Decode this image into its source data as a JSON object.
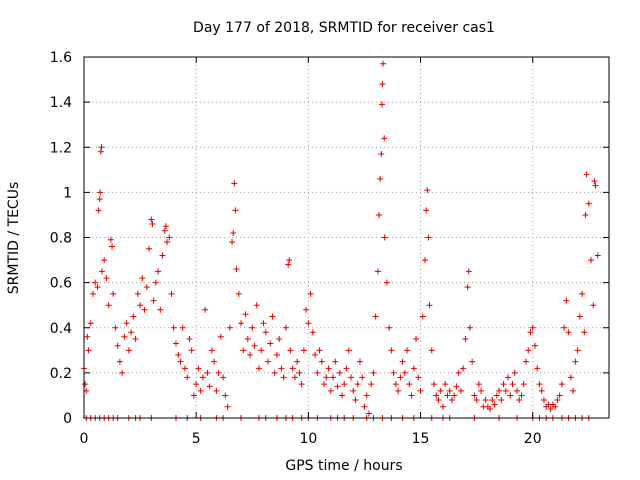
{
  "chart_data": {
    "type": "scatter",
    "title": "Day 177 of 2018, SRMTID for receiver cas1",
    "xlabel": "GPS time / hours",
    "ylabel": "SRMTID / TECUs",
    "xlim": [
      0,
      23.4
    ],
    "ylim": [
      0,
      1.6
    ],
    "x_ticks": [
      "0",
      "5",
      "10",
      "15",
      "20"
    ],
    "x_tick_values": [
      0,
      5,
      10,
      15,
      20
    ],
    "y_ticks": [
      "0",
      "0.2",
      "0.4",
      "0.6",
      "0.8",
      "1",
      "1.2",
      "1.4",
      "1.6"
    ],
    "y_tick_values": [
      0,
      0.2,
      0.4,
      0.6,
      0.8,
      1.0,
      1.2,
      1.4,
      1.6
    ],
    "grid": true,
    "marker": "+",
    "marker_color": "#e00000",
    "series": [
      {
        "name": "SRMTID",
        "points": [
          [
            0.0,
            0.22
          ],
          [
            0.05,
            0.15
          ],
          [
            0.1,
            0.12
          ],
          [
            0.15,
            0.36
          ],
          [
            0.2,
            0.3
          ],
          [
            0.3,
            0.42
          ],
          [
            0.4,
            0.55
          ],
          [
            0.5,
            0.6
          ],
          [
            0.6,
            0.58
          ],
          [
            0.65,
            0.92
          ],
          [
            0.7,
            0.97
          ],
          [
            0.72,
            1.0
          ],
          [
            0.75,
            1.18
          ],
          [
            0.78,
            1.2
          ],
          [
            0.8,
            0.65
          ],
          [
            0.9,
            0.7
          ],
          [
            1.0,
            0.62
          ],
          [
            1.1,
            0.5
          ],
          [
            1.2,
            0.79
          ],
          [
            1.25,
            0.76
          ],
          [
            1.3,
            0.55
          ],
          [
            1.4,
            0.4
          ],
          [
            1.5,
            0.32
          ],
          [
            1.6,
            0.25
          ],
          [
            1.7,
            0.2
          ],
          [
            1.8,
            0.36
          ],
          [
            1.9,
            0.42
          ],
          [
            2.0,
            0.3
          ],
          [
            2.1,
            0.38
          ],
          [
            2.2,
            0.45
          ],
          [
            2.3,
            0.35
          ],
          [
            2.4,
            0.55
          ],
          [
            2.5,
            0.5
          ],
          [
            2.6,
            0.62
          ],
          [
            2.7,
            0.48
          ],
          [
            2.8,
            0.58
          ],
          [
            2.9,
            0.75
          ],
          [
            3.0,
            0.88
          ],
          [
            3.05,
            0.86
          ],
          [
            3.1,
            0.52
          ],
          [
            3.2,
            0.6
          ],
          [
            3.3,
            0.65
          ],
          [
            3.4,
            0.48
          ],
          [
            3.5,
            0.72
          ],
          [
            3.6,
            0.83
          ],
          [
            3.65,
            0.85
          ],
          [
            3.7,
            0.78
          ],
          [
            3.8,
            0.8
          ],
          [
            3.9,
            0.55
          ],
          [
            4.0,
            0.4
          ],
          [
            4.1,
            0.33
          ],
          [
            4.2,
            0.28
          ],
          [
            4.3,
            0.25
          ],
          [
            4.4,
            0.4
          ],
          [
            4.5,
            0.22
          ],
          [
            4.6,
            0.18
          ],
          [
            4.7,
            0.35
          ],
          [
            4.8,
            0.3
          ],
          [
            4.9,
            0.1
          ],
          [
            5.0,
            0.15
          ],
          [
            5.1,
            0.22
          ],
          [
            5.2,
            0.12
          ],
          [
            5.3,
            0.18
          ],
          [
            5.4,
            0.48
          ],
          [
            5.5,
            0.2
          ],
          [
            5.6,
            0.14
          ],
          [
            5.7,
            0.3
          ],
          [
            5.8,
            0.25
          ],
          [
            5.9,
            0.12
          ],
          [
            6.0,
            0.2
          ],
          [
            6.1,
            0.36
          ],
          [
            6.2,
            0.18
          ],
          [
            6.3,
            0.1
          ],
          [
            6.4,
            0.05
          ],
          [
            6.5,
            0.4
          ],
          [
            6.6,
            0.78
          ],
          [
            6.65,
            0.82
          ],
          [
            6.7,
            1.04
          ],
          [
            6.75,
            0.92
          ],
          [
            6.8,
            0.66
          ],
          [
            6.9,
            0.55
          ],
          [
            7.0,
            0.42
          ],
          [
            7.1,
            0.3
          ],
          [
            7.2,
            0.46
          ],
          [
            7.3,
            0.35
          ],
          [
            7.4,
            0.28
          ],
          [
            7.5,
            0.4
          ],
          [
            7.6,
            0.32
          ],
          [
            7.7,
            0.5
          ],
          [
            7.8,
            0.22
          ],
          [
            7.9,
            0.3
          ],
          [
            8.0,
            0.42
          ],
          [
            8.1,
            0.38
          ],
          [
            8.2,
            0.25
          ],
          [
            8.3,
            0.33
          ],
          [
            8.4,
            0.45
          ],
          [
            8.5,
            0.2
          ],
          [
            8.6,
            0.28
          ],
          [
            8.7,
            0.35
          ],
          [
            8.8,
            0.22
          ],
          [
            8.9,
            0.18
          ],
          [
            9.0,
            0.4
          ],
          [
            9.1,
            0.68
          ],
          [
            9.15,
            0.7
          ],
          [
            9.2,
            0.3
          ],
          [
            9.3,
            0.22
          ],
          [
            9.4,
            0.18
          ],
          [
            9.5,
            0.25
          ],
          [
            9.6,
            0.2
          ],
          [
            9.7,
            0.15
          ],
          [
            9.8,
            0.3
          ],
          [
            9.9,
            0.48
          ],
          [
            10.0,
            0.42
          ],
          [
            10.1,
            0.55
          ],
          [
            10.2,
            0.38
          ],
          [
            10.3,
            0.28
          ],
          [
            10.4,
            0.2
          ],
          [
            10.5,
            0.3
          ],
          [
            10.6,
            0.25
          ],
          [
            10.7,
            0.15
          ],
          [
            10.8,
            0.18
          ],
          [
            10.9,
            0.22
          ],
          [
            11.0,
            0.12
          ],
          [
            11.1,
            0.18
          ],
          [
            11.2,
            0.25
          ],
          [
            11.3,
            0.14
          ],
          [
            11.4,
            0.2
          ],
          [
            11.5,
            0.1
          ],
          [
            11.6,
            0.15
          ],
          [
            11.7,
            0.22
          ],
          [
            11.8,
            0.3
          ],
          [
            11.9,
            0.18
          ],
          [
            12.0,
            0.12
          ],
          [
            12.1,
            0.08
          ],
          [
            12.2,
            0.15
          ],
          [
            12.3,
            0.25
          ],
          [
            12.4,
            0.18
          ],
          [
            12.5,
            0.05
          ],
          [
            12.6,
            0.1
          ],
          [
            12.7,
            0.02
          ],
          [
            12.8,
            0.15
          ],
          [
            12.9,
            0.2
          ],
          [
            13.0,
            0.45
          ],
          [
            13.1,
            0.65
          ],
          [
            13.15,
            0.9
          ],
          [
            13.2,
            1.06
          ],
          [
            13.25,
            1.17
          ],
          [
            13.28,
            1.39
          ],
          [
            13.3,
            1.48
          ],
          [
            13.33,
            1.57
          ],
          [
            13.38,
            1.24
          ],
          [
            13.4,
            0.8
          ],
          [
            13.5,
            0.6
          ],
          [
            13.6,
            0.4
          ],
          [
            13.7,
            0.3
          ],
          [
            13.8,
            0.2
          ],
          [
            13.9,
            0.15
          ],
          [
            14.0,
            0.12
          ],
          [
            14.1,
            0.18
          ],
          [
            14.2,
            0.25
          ],
          [
            14.3,
            0.2
          ],
          [
            14.4,
            0.3
          ],
          [
            14.5,
            0.15
          ],
          [
            14.6,
            0.1
          ],
          [
            14.7,
            0.22
          ],
          [
            14.8,
            0.35
          ],
          [
            14.9,
            0.18
          ],
          [
            15.0,
            0.12
          ],
          [
            15.1,
            0.45
          ],
          [
            15.2,
            0.7
          ],
          [
            15.25,
            0.92
          ],
          [
            15.3,
            1.01
          ],
          [
            15.35,
            0.8
          ],
          [
            15.4,
            0.5
          ],
          [
            15.5,
            0.3
          ],
          [
            15.6,
            0.15
          ],
          [
            15.7,
            0.1
          ],
          [
            15.8,
            0.08
          ],
          [
            15.9,
            0.12
          ],
          [
            16.0,
            0.05
          ],
          [
            16.1,
            0.15
          ],
          [
            16.2,
            0.1
          ],
          [
            16.3,
            0.12
          ],
          [
            16.4,
            0.08
          ],
          [
            16.5,
            0.1
          ],
          [
            16.6,
            0.14
          ],
          [
            16.7,
            0.2
          ],
          [
            16.8,
            0.12
          ],
          [
            16.9,
            0.22
          ],
          [
            17.0,
            0.35
          ],
          [
            17.1,
            0.58
          ],
          [
            17.15,
            0.65
          ],
          [
            17.2,
            0.4
          ],
          [
            17.3,
            0.25
          ],
          [
            17.4,
            0.1
          ],
          [
            17.5,
            0.08
          ],
          [
            17.6,
            0.15
          ],
          [
            17.7,
            0.12
          ],
          [
            17.8,
            0.05
          ],
          [
            17.9,
            0.08
          ],
          [
            18.0,
            0.05
          ],
          [
            18.1,
            0.04
          ],
          [
            18.2,
            0.08
          ],
          [
            18.3,
            0.06
          ],
          [
            18.4,
            0.1
          ],
          [
            18.5,
            0.12
          ],
          [
            18.6,
            0.08
          ],
          [
            18.7,
            0.15
          ],
          [
            18.8,
            0.12
          ],
          [
            18.9,
            0.18
          ],
          [
            19.0,
            0.1
          ],
          [
            19.1,
            0.15
          ],
          [
            19.2,
            0.2
          ],
          [
            19.3,
            0.12
          ],
          [
            19.4,
            0.08
          ],
          [
            19.5,
            0.1
          ],
          [
            19.6,
            0.15
          ],
          [
            19.7,
            0.25
          ],
          [
            19.8,
            0.3
          ],
          [
            19.9,
            0.38
          ],
          [
            20.0,
            0.4
          ],
          [
            20.1,
            0.32
          ],
          [
            20.2,
            0.22
          ],
          [
            20.3,
            0.15
          ],
          [
            20.4,
            0.12
          ],
          [
            20.5,
            0.08
          ],
          [
            20.6,
            0.05
          ],
          [
            20.7,
            0.06
          ],
          [
            20.8,
            0.04
          ],
          [
            20.9,
            0.06
          ],
          [
            21.0,
            0.05
          ],
          [
            21.1,
            0.08
          ],
          [
            21.2,
            0.1
          ],
          [
            21.3,
            0.15
          ],
          [
            21.4,
            0.4
          ],
          [
            21.5,
            0.52
          ],
          [
            21.6,
            0.38
          ],
          [
            21.7,
            0.18
          ],
          [
            21.8,
            0.12
          ],
          [
            21.9,
            0.25
          ],
          [
            22.0,
            0.3
          ],
          [
            22.1,
            0.45
          ],
          [
            22.2,
            0.55
          ],
          [
            22.3,
            0.38
          ],
          [
            22.35,
            0.9
          ],
          [
            22.4,
            1.08
          ],
          [
            22.5,
            0.95
          ],
          [
            22.6,
            0.7
          ],
          [
            22.7,
            0.5
          ],
          [
            22.75,
            1.05
          ],
          [
            22.8,
            1.03
          ],
          [
            22.9,
            0.72
          ]
        ]
      },
      {
        "name": "SRMTID (zero)",
        "points": [
          [
            0.1,
            0
          ],
          [
            0.3,
            0
          ],
          [
            0.5,
            0
          ],
          [
            0.7,
            0
          ],
          [
            0.9,
            0
          ],
          [
            1.1,
            0
          ],
          [
            1.3,
            0
          ],
          [
            1.5,
            0
          ],
          [
            2.0,
            0
          ],
          [
            2.3,
            0
          ],
          [
            2.5,
            0
          ],
          [
            3.0,
            0
          ],
          [
            4.1,
            0
          ],
          [
            4.6,
            0
          ],
          [
            5.2,
            0
          ],
          [
            5.9,
            0
          ],
          [
            6.2,
            0
          ],
          [
            7.0,
            0
          ],
          [
            7.8,
            0
          ],
          [
            8.1,
            0
          ],
          [
            8.6,
            0
          ],
          [
            9.0,
            0
          ],
          [
            9.3,
            0
          ],
          [
            9.7,
            0
          ],
          [
            10.0,
            0
          ],
          [
            10.4,
            0
          ],
          [
            11.0,
            0
          ],
          [
            11.3,
            0
          ],
          [
            11.6,
            0
          ],
          [
            12.0,
            0
          ],
          [
            12.6,
            0
          ],
          [
            12.9,
            0
          ],
          [
            13.3,
            0
          ],
          [
            13.7,
            0
          ],
          [
            14.2,
            0
          ],
          [
            14.7,
            0
          ],
          [
            15.5,
            0
          ],
          [
            16.0,
            0
          ],
          [
            16.3,
            0
          ],
          [
            17.4,
            0
          ],
          [
            18.5,
            0
          ],
          [
            19.3,
            0
          ],
          [
            20.0,
            0
          ],
          [
            20.3,
            0
          ],
          [
            20.6,
            0
          ],
          [
            20.9,
            0
          ],
          [
            21.3,
            0
          ],
          [
            21.6,
            0
          ],
          [
            21.9,
            0
          ],
          [
            22.2,
            0
          ],
          [
            22.5,
            0
          ]
        ]
      }
    ]
  }
}
